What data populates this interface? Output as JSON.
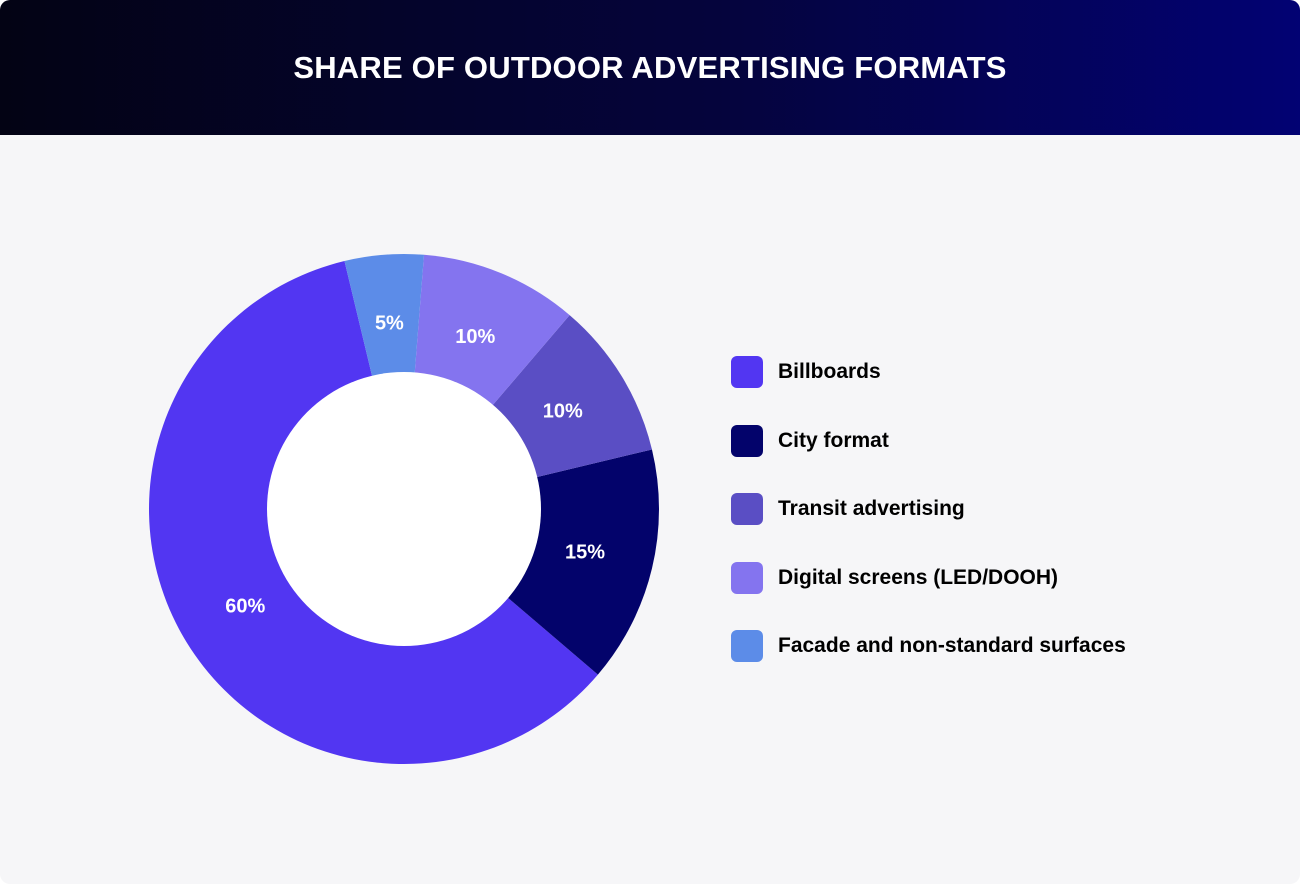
{
  "header": {
    "title": "SHARE OF OUTDOOR ADVERTISING FORMATS"
  },
  "chart_data": {
    "type": "pie",
    "variant": "donut",
    "title": "SHARE OF OUTDOOR ADVERTISING FORMATS",
    "legend_position": "right",
    "categories": [
      "Billboards",
      "City format",
      "Transit advertising",
      "Digital screens (LED/DOOH)",
      "Facade and non-standard surfaces"
    ],
    "values": [
      60,
      15,
      10,
      10,
      5
    ],
    "value_labels": [
      "60%",
      "15%",
      "10%",
      "10%",
      "5%"
    ],
    "colors": [
      "#5236f2",
      "#03036b",
      "#5a4ec4",
      "#8474ef",
      "#5c8ce8"
    ],
    "label_color": "#ffffff",
    "hole_color": "#ffffff"
  }
}
